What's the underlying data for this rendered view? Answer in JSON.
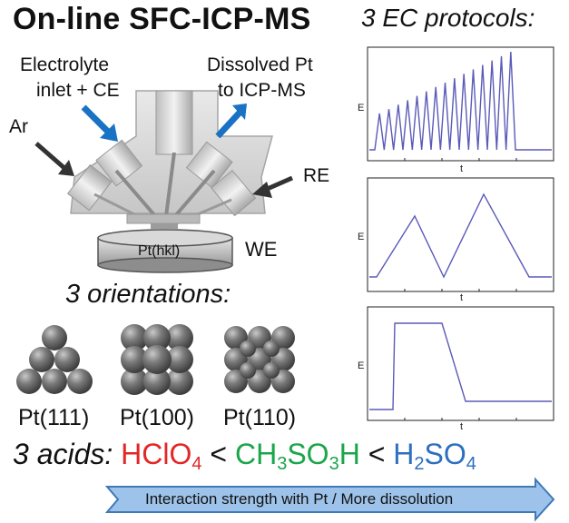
{
  "title": "On-line SFC-ICP-MS",
  "ec_title": "3 EC protocols:",
  "labels": {
    "electrolyte_line1": "Electrolyte",
    "electrolyte_line2": "inlet + CE",
    "dissolved_line1": "Dissolved Pt",
    "dissolved_line2": "to ICP-MS",
    "ar": "Ar",
    "re": "RE",
    "we": "WE",
    "crystal": "Pt(hkl)"
  },
  "orientations_title": "3 orientations:",
  "orientations": [
    "Pt(111)",
    "Pt(100)",
    "Pt(110)"
  ],
  "acids": {
    "prefix": "3 acids:",
    "a1_main": "HClO",
    "a1_sub": "4",
    "lt1": "<",
    "a2_p1": "CH",
    "a2_s1": "3",
    "a2_p2": "SO",
    "a2_s2": "3",
    "a2_p3": "H",
    "lt2": "<",
    "a3_p1": "H",
    "a3_s1": "2",
    "a3_p2": "SO",
    "a3_s2": "4"
  },
  "arrow_text": "Interaction strength with Pt / More dissolution",
  "plots": [
    {
      "xlabel": "t",
      "ylabel": "E"
    },
    {
      "xlabel": "t",
      "ylabel": "E"
    },
    {
      "xlabel": "t",
      "ylabel": "E"
    }
  ],
  "colors": {
    "trace": "#5a5ab8",
    "blue_arrow": "#1a72c4",
    "acid1": "#e32626",
    "acid2": "#1aa64a",
    "acid3": "#2d6fc0",
    "arrow_fill": "#9ec3ea"
  }
}
